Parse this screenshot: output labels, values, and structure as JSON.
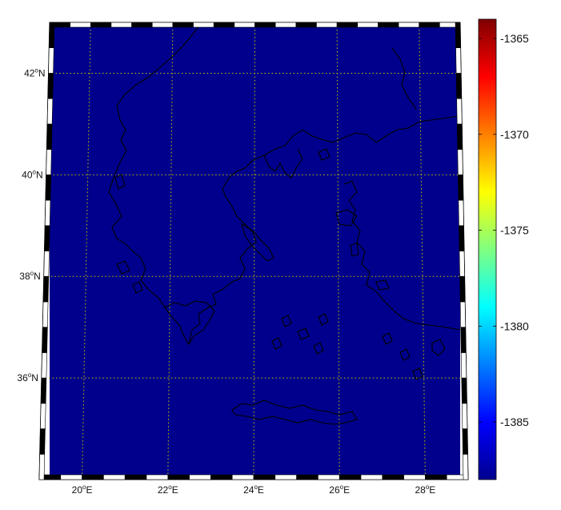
{
  "map": {
    "field": "noisy scalar field",
    "colormap": "jet",
    "projection": "mercator-like",
    "extent": {
      "lon": [
        19.0,
        29.0
      ],
      "lat": [
        34.0,
        43.0
      ]
    },
    "grid": {
      "visible": true,
      "style": "dotted",
      "color": "#c8c800"
    },
    "coastline_color": "#000000"
  },
  "chart_data": {
    "type": "heatmap",
    "title": "",
    "xlabel": "",
    "ylabel": "",
    "x_ticks": [
      {
        "value": 20,
        "label_num": "20",
        "label_unit": "E"
      },
      {
        "value": 22,
        "label_num": "22",
        "label_unit": "E"
      },
      {
        "value": 24,
        "label_num": "24",
        "label_unit": "E"
      },
      {
        "value": 26,
        "label_num": "26",
        "label_unit": "E"
      },
      {
        "value": 28,
        "label_num": "28",
        "label_unit": "E"
      }
    ],
    "y_ticks": [
      {
        "value": 36,
        "label_num": "36",
        "label_unit": "N"
      },
      {
        "value": 38,
        "label_num": "38",
        "label_unit": "N"
      },
      {
        "value": 40,
        "label_num": "40",
        "label_unit": "N"
      },
      {
        "value": 42,
        "label_num": "42",
        "label_unit": "N"
      }
    ],
    "degree_symbol": "o",
    "colorbar": {
      "range": [
        -1388,
        -1364
      ],
      "ticks": [
        -1365,
        -1370,
        -1375,
        -1380,
        -1385
      ],
      "tick_labels": [
        "-1365",
        "-1370",
        "-1375",
        "-1380",
        "-1385"
      ],
      "colormap": "jet"
    }
  }
}
